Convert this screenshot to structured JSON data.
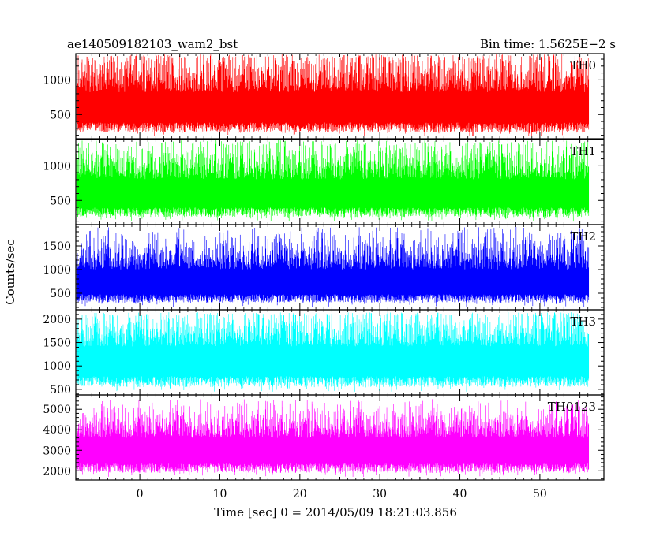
{
  "header": {
    "title": "ae140509182103_wam2_bst",
    "bin_time": "Bin time: 1.5625E−2 s"
  },
  "chart_data": {
    "type": "line",
    "title": "ae140509182103_wam2_bst",
    "subtitle": "Bin time: 1.5625E−2 s",
    "xlabel": "Time [sec] 0 = 2014/05/09 18:21:03.856",
    "ylabel": "Counts/sec",
    "xlim": [
      -8.0,
      58.0
    ],
    "x_ticks": [
      0,
      10,
      20,
      30,
      40,
      50
    ],
    "data_x_range": [
      -7.9,
      56.1
    ],
    "grid": false,
    "panels": [
      {
        "name": "TH0",
        "color": "#ff0000",
        "ylim": [
          150,
          1380
        ],
        "y_ticks": [
          500,
          1000
        ],
        "y_ticklabels": [
          "500",
          "1000"
        ],
        "typical": {
          "low": 240,
          "mean": 650,
          "high": 1200,
          "max": 1370
        }
      },
      {
        "name": "TH1",
        "color": "#00ff00",
        "ylim": [
          150,
          1380
        ],
        "y_ticks": [
          500,
          1000
        ],
        "y_ticklabels": [
          "500",
          "1000"
        ],
        "typical": {
          "low": 260,
          "mean": 650,
          "high": 1150,
          "max": 1370
        }
      },
      {
        "name": "TH2",
        "color": "#0000ff",
        "ylim": [
          150,
          1950
        ],
        "y_ticks": [
          500,
          1000,
          1500
        ],
        "y_ticklabels": [
          "500",
          "1000",
          "1500"
        ],
        "typical": {
          "low": 300,
          "mean": 800,
          "high": 1450,
          "max": 1900
        }
      },
      {
        "name": "TH3",
        "color": "#00ffff",
        "ylim": [
          380,
          2200
        ],
        "y_ticks": [
          500,
          1000,
          1500,
          2000
        ],
        "y_ticklabels": [
          "500",
          "1000",
          "1500",
          "2000"
        ],
        "typical": {
          "low": 550,
          "mean": 1200,
          "high": 1900,
          "max": 2150
        }
      },
      {
        "name": "TH0123",
        "color": "#ff00ff",
        "ylim": [
          1550,
          5700
        ],
        "y_ticks": [
          2000,
          3000,
          4000,
          5000
        ],
        "y_ticklabels": [
          "2000",
          "3000",
          "4000",
          "5000"
        ],
        "typical": {
          "low": 1900,
          "mean": 3200,
          "high": 4500,
          "max": 5500
        }
      }
    ]
  }
}
